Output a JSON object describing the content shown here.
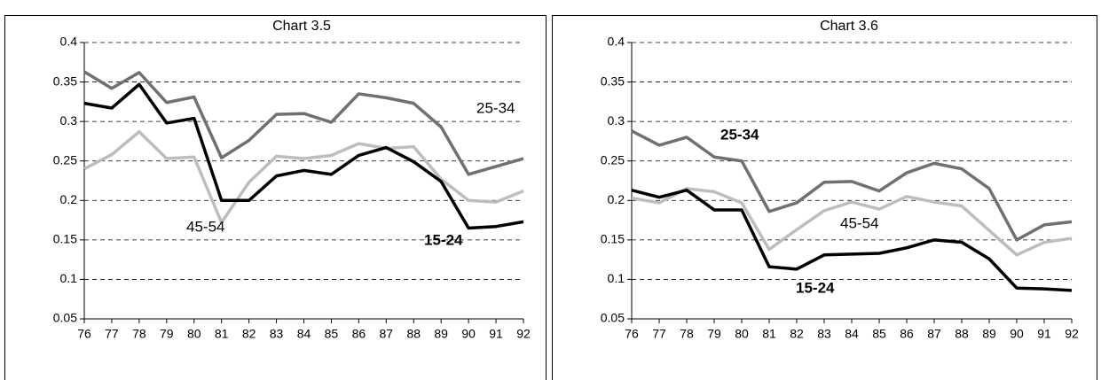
{
  "chart_data": [
    {
      "type": "line",
      "title": "Chart 3.5",
      "categories": [
        "76",
        "77",
        "78",
        "79",
        "80",
        "81",
        "82",
        "83",
        "84",
        "85",
        "86",
        "87",
        "88",
        "89",
        "90",
        "91",
        "92"
      ],
      "ylim": [
        0.05,
        0.4
      ],
      "yticks": [
        0.05,
        0.1,
        0.15,
        0.2,
        0.25,
        0.3,
        0.35,
        0.4
      ],
      "grid": true,
      "series": [
        {
          "name": "25-34",
          "color": "#707070",
          "values": [
            0.363,
            0.342,
            0.362,
            0.324,
            0.331,
            0.254,
            0.276,
            0.309,
            0.31,
            0.299,
            0.335,
            0.33,
            0.323,
            0.293,
            0.233,
            0.243,
            0.253
          ]
        },
        {
          "name": "45-54",
          "color": "#bdbdbd",
          "values": [
            0.24,
            0.258,
            0.287,
            0.253,
            0.255,
            0.172,
            0.223,
            0.256,
            0.253,
            0.257,
            0.272,
            0.266,
            0.268,
            0.227,
            0.2,
            0.198,
            0.212
          ]
        },
        {
          "name": "15-24",
          "color": "#000000",
          "values": [
            0.323,
            0.317,
            0.347,
            0.298,
            0.304,
            0.2,
            0.2,
            0.231,
            0.238,
            0.233,
            0.257,
            0.267,
            0.249,
            0.224,
            0.165,
            0.167,
            0.173
          ]
        }
      ]
    },
    {
      "type": "line",
      "title": "Chart 3.6",
      "categories": [
        "76",
        "77",
        "78",
        "79",
        "80",
        "81",
        "82",
        "83",
        "84",
        "85",
        "86",
        "87",
        "88",
        "89",
        "90",
        "91",
        "92"
      ],
      "ylim": [
        0.05,
        0.4
      ],
      "yticks": [
        0.05,
        0.1,
        0.15,
        0.2,
        0.25,
        0.3,
        0.35,
        0.4
      ],
      "grid": true,
      "series": [
        {
          "name": "25-34",
          "color": "#707070",
          "values": [
            0.288,
            0.27,
            0.28,
            0.255,
            0.25,
            0.186,
            0.197,
            0.223,
            0.224,
            0.212,
            0.235,
            0.247,
            0.24,
            0.215,
            0.15,
            0.169,
            0.173
          ]
        },
        {
          "name": "45-54",
          "color": "#bdbdbd",
          "values": [
            0.203,
            0.197,
            0.215,
            0.211,
            0.197,
            0.138,
            0.163,
            0.187,
            0.198,
            0.189,
            0.205,
            0.198,
            0.193,
            0.162,
            0.131,
            0.147,
            0.152
          ]
        },
        {
          "name": "15-24",
          "color": "#000000",
          "values": [
            0.213,
            0.204,
            0.213,
            0.188,
            0.188,
            0.116,
            0.113,
            0.131,
            0.132,
            0.133,
            0.14,
            0.15,
            0.147,
            0.126,
            0.089,
            0.088,
            0.086
          ]
        }
      ]
    }
  ]
}
